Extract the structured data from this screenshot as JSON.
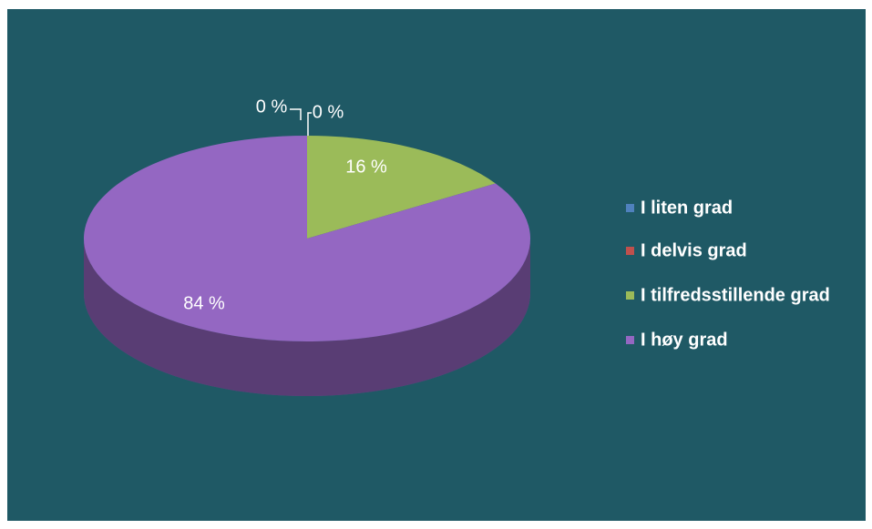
{
  "chart_data": {
    "type": "pie",
    "categories": [
      "I liten grad",
      "I delvis grad",
      "I tilfredsstillende grad",
      "I høy grad"
    ],
    "values": [
      0,
      0,
      16,
      84
    ],
    "value_labels": [
      "0 %",
      "0 %",
      "16 %",
      "84 %"
    ],
    "colors": [
      "#4f81bd",
      "#c0504d",
      "#9bbb59",
      "#9467c2"
    ],
    "legend": "right"
  }
}
